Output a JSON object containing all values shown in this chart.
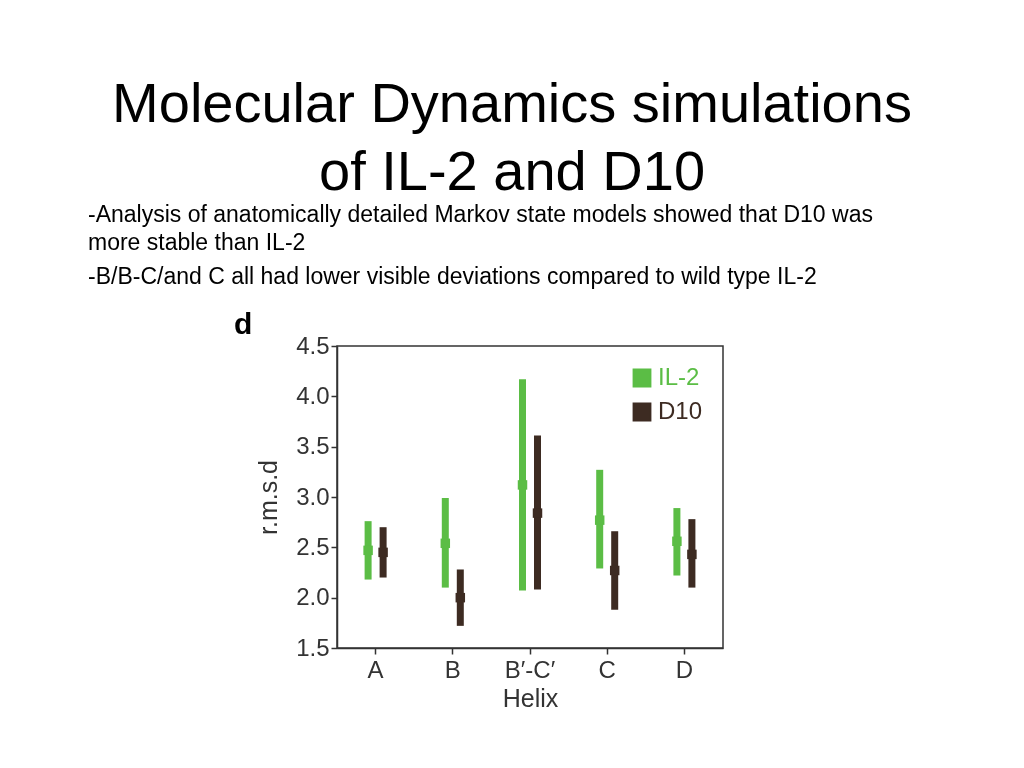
{
  "chart_data": {
    "type": "scatter",
    "title": "Molecular Dynamics simulations of IL-2 and D10",
    "annotations": [
      "-Analysis of anatomically detailed Markov state models showed that D10 was more stable than IL-2",
      "-B/B-C/and C all had lower visible deviations compared to wild type IL-2",
      "d"
    ],
    "xlabel": "Helix",
    "ylabel": "r.m.s.d",
    "categories": [
      "A",
      "B",
      "B′-C′",
      "C",
      "D"
    ],
    "series": [
      {
        "name": "IL-2",
        "color": "#5bbd45",
        "values": [
          2.47,
          2.54,
          3.12,
          2.77,
          2.56
        ],
        "errors": [
          [
            2.18,
            2.76
          ],
          [
            2.1,
            2.99
          ],
          [
            2.07,
            4.17
          ],
          [
            2.29,
            3.27
          ],
          [
            2.22,
            2.89
          ]
        ]
      },
      {
        "name": "D10",
        "color": "#3d2b22",
        "values": [
          2.45,
          2.0,
          2.84,
          2.27,
          2.43
        ],
        "errors": [
          [
            2.2,
            2.7
          ],
          [
            1.72,
            2.28
          ],
          [
            2.08,
            3.61
          ],
          [
            1.88,
            2.66
          ],
          [
            2.1,
            2.78
          ]
        ]
      }
    ],
    "ylim": [
      1.5,
      4.5
    ],
    "yticks": [
      {
        "value": 1.5,
        "label": "1.5"
      },
      {
        "value": 2,
        "label": "2.0"
      },
      {
        "value": 2.5,
        "label": "2.5"
      },
      {
        "value": 3,
        "label": "3.0"
      },
      {
        "value": 3.5,
        "label": "3.5"
      },
      {
        "value": 4,
        "label": "4.0"
      },
      {
        "value": 4.5,
        "label": "4.5"
      }
    ],
    "legend": "top right",
    "marker": "square",
    "grid": false
  }
}
